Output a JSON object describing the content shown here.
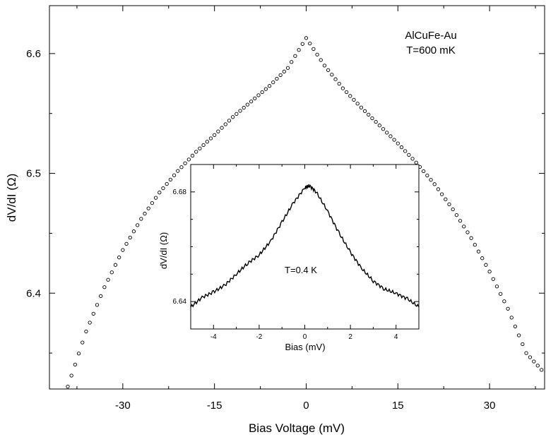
{
  "chart_data": [
    {
      "type": "scatter",
      "marker": "open-circle",
      "xlabel": "Bias Voltage  (mV)",
      "ylabel": "dV/dI  (Ω)",
      "xlim": [
        -42,
        39
      ],
      "ylim": [
        6.32,
        6.64
      ],
      "xticks": [
        -30,
        -15,
        0,
        15,
        30
      ],
      "xtick_labels": [
        "-30",
        "-15",
        "0",
        "15",
        "30"
      ],
      "yticks": [
        6.4,
        6.5,
        6.6
      ],
      "ytick_labels": [
        "6.4",
        "6.5",
        "6.6"
      ],
      "annotations": [
        "AlCuFe-Au",
        "T=600 mK"
      ],
      "series": [
        {
          "points": [
            [
              -39.0,
              6.322
            ],
            [
              -36.0,
              6.368
            ],
            [
              -33.0,
              6.405
            ],
            [
              -30.0,
              6.436
            ],
            [
              -27.0,
              6.462
            ],
            [
              -24.0,
              6.484
            ],
            [
              -21.0,
              6.502
            ],
            [
              -18.0,
              6.518
            ],
            [
              -15.0,
              6.532
            ],
            [
              -12.0,
              6.547
            ],
            [
              -9.0,
              6.56
            ],
            [
              -6.0,
              6.573
            ],
            [
              -3.0,
              6.588
            ],
            [
              0.0,
              6.613
            ],
            [
              3.0,
              6.59
            ],
            [
              6.0,
              6.571
            ],
            [
              9.0,
              6.555
            ],
            [
              12.0,
              6.54
            ],
            [
              15.0,
              6.525
            ],
            [
              18.0,
              6.509
            ],
            [
              21.0,
              6.491
            ],
            [
              24.0,
              6.47
            ],
            [
              27.0,
              6.446
            ],
            [
              30.0,
              6.418
            ],
            [
              33.0,
              6.387
            ],
            [
              36.0,
              6.35
            ],
            [
              38.5,
              6.336
            ]
          ]
        }
      ]
    },
    {
      "type": "line",
      "xlabel": "Bias  (mV)",
      "ylabel": "dV/dI  (Ω)",
      "xlim": [
        -5,
        5
      ],
      "ylim": [
        6.63,
        6.69
      ],
      "xticks": [
        -4,
        -2,
        0,
        2,
        4
      ],
      "xtick_labels": [
        "-4",
        "-2",
        "0",
        "2",
        "4"
      ],
      "yticks": [
        6.64,
        6.68
      ],
      "ytick_labels": [
        "6.64",
        "6.68"
      ],
      "annotations": [
        "T=0.4 K"
      ],
      "series": [
        {
          "x": [
            -5.0,
            -4.5,
            -4.0,
            -3.5,
            -3.0,
            -2.5,
            -2.0,
            -1.5,
            -1.0,
            -0.5,
            0.0,
            0.2,
            0.5,
            1.0,
            1.5,
            2.0,
            2.5,
            3.0,
            3.5,
            4.0,
            4.5,
            5.0
          ],
          "values": [
            6.638,
            6.6415,
            6.6435,
            6.646,
            6.65,
            6.654,
            6.657,
            6.662,
            6.669,
            6.676,
            6.6815,
            6.6823,
            6.68,
            6.673,
            6.665,
            6.658,
            6.652,
            6.6475,
            6.6445,
            6.643,
            6.641,
            6.638
          ]
        }
      ]
    }
  ]
}
